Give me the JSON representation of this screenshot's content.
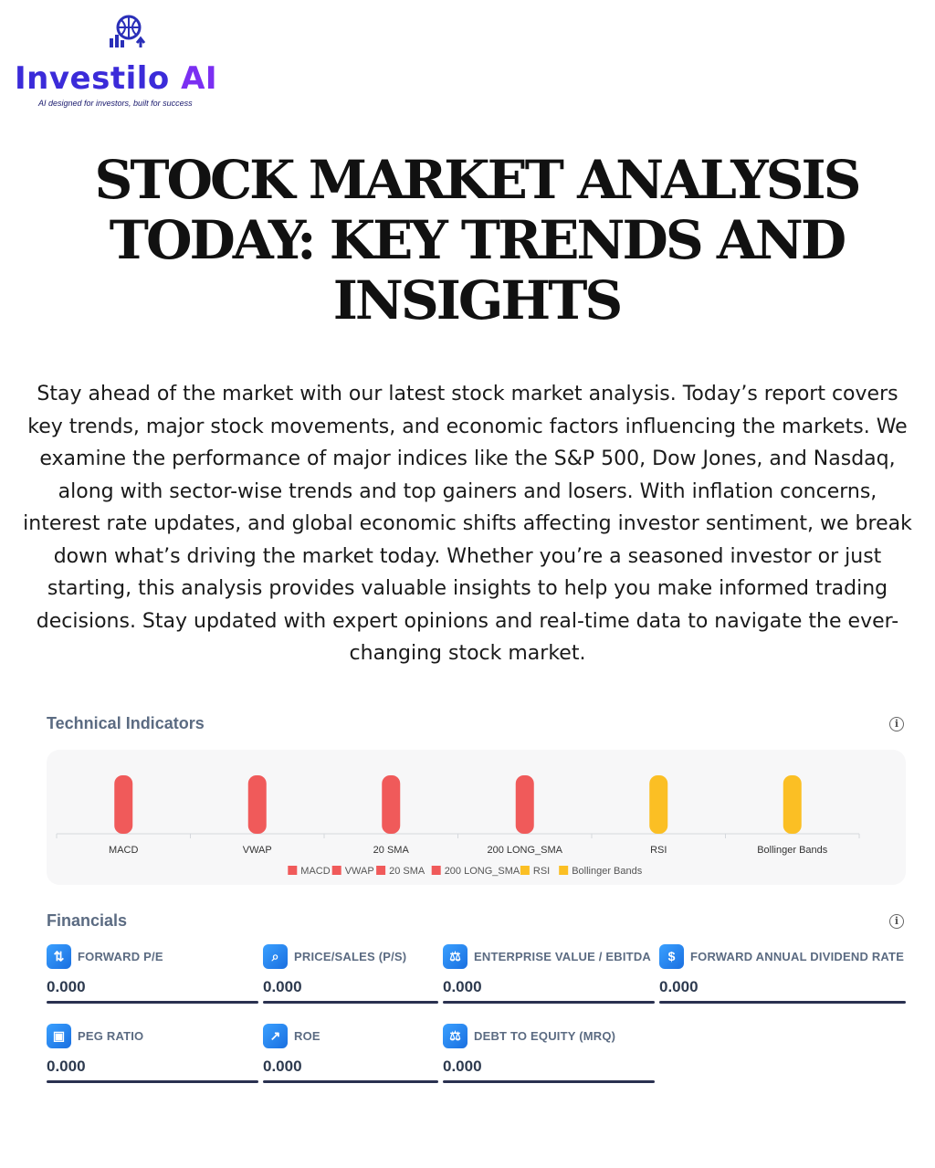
{
  "brand": {
    "name_main": "Investilo ",
    "name_ai": "AI",
    "tagline": "AI designed for investors, built for success",
    "logo_icon": "globe-building-chart-icon",
    "colors": {
      "primary": "#3b2bd9",
      "accent": "#7b2ff2"
    }
  },
  "headline": "STOCK MARKET ANALYSIS TODAY: KEY TRENDS AND INSIGHTS",
  "intro": "Stay ahead of the market with our latest stock market analysis. Today’s report covers key trends, major stock movements, and economic factors influencing the markets. We examine the performance of major indices like the S&P 500, Dow Jones, and Nasdaq, along with sector-wise trends and top gainers and losers. With inflation concerns, interest rate updates, and global economic shifts affecting investor sentiment, we break down what’s driving the market today. Whether you’re a seasoned investor or just starting, this analysis provides valuable insights to help you make informed trading decisions. Stay updated with expert opinions and real-time data to navigate the ever-changing stock market.",
  "technical": {
    "title": "Technical Indicators",
    "info_icon": "info-icon"
  },
  "chart_data": {
    "type": "bar",
    "categories": [
      "MACD",
      "VWAP",
      "20 SMA",
      "200 LONG_SMA",
      "RSI",
      "Bollinger Bands"
    ],
    "values": [
      1,
      1,
      1,
      1,
      1,
      1
    ],
    "colors": [
      "#f05a5a",
      "#f05a5a",
      "#f05a5a",
      "#f05a5a",
      "#fbbf24",
      "#fbbf24"
    ],
    "legend": [
      "MACD",
      "VWAP",
      "20 SMA",
      "200 LONG_SMA",
      "RSI",
      "Bollinger Bands"
    ],
    "legend_position": "bottom",
    "grid": false
  },
  "financials": {
    "title": "Financials",
    "info_icon": "info-icon",
    "items": [
      {
        "label": "FORWARD P/E",
        "value": "0.000",
        "icon": "sort-arrows-icon"
      },
      {
        "label": "PRICE/SALES (P/S)",
        "value": "0.000",
        "icon": "magnify-chart-icon"
      },
      {
        "label": "ENTERPRISE VALUE / EBITDA",
        "value": "0.000",
        "icon": "scale-icon"
      },
      {
        "label": "FORWARD ANNUAL DIVIDEND RATE",
        "value": "0.000",
        "icon": "document-dollar-icon"
      },
      {
        "label": "PEG RATIO",
        "value": "0.000",
        "icon": "cash-icon"
      },
      {
        "label": "ROE",
        "value": "0.000",
        "icon": "growth-chart-icon"
      },
      {
        "label": "DEBT TO EQUITY (MRQ)",
        "value": "0.000",
        "icon": "balance-icon"
      }
    ]
  }
}
